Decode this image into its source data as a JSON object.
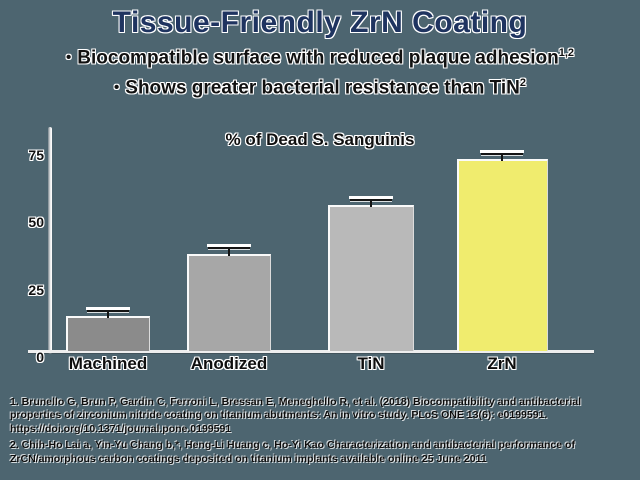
{
  "slide": {
    "title": "Tissue-Friendly ZrN Coating",
    "bullets": [
      {
        "dot": "•",
        "text": "Biocompatible surface with reduced plaque adhesion",
        "sup": "1,2"
      },
      {
        "dot": "•",
        "text": "Shows greater bacterial resistance than TiN",
        "sup": "2"
      }
    ],
    "footnotes": [
      {
        "lines": [
          "1. Brunello G, Brun P, Gardin C, Ferroni L, Bressan E, Meneghello R, et al. (2018) Biocompatibility and antibacterial",
          "properties of zirconium nitride coating on titanium abutments: An in vitro study. PLoS ONE 13(6): e0199591.",
          "https://doi.org/10.1371/journal.pone.0199591"
        ]
      },
      {
        "lines": [
          "2. Chih-Ho Lai a, Yin-Yu Chang b,*, Heng-Li Huang c, Ho-Yi Kao Characterization and antibacterial performance of",
          "ZrCN/amorphous carbon coatings deposited on titanium implants available online 25 June 2011"
        ]
      }
    ],
    "colors": {
      "background": "#4d6570",
      "title_text": "#1f3460",
      "body_text": "#111111",
      "highlight_bar": "#f0ec6e"
    }
  },
  "chart_data": {
    "type": "bar",
    "title": "% of Dead S. Sanguinis",
    "categories": [
      "Machined",
      "Anodized",
      "TiN",
      "ZrN"
    ],
    "values": [
      13,
      36,
      54,
      71
    ],
    "error_bars": [
      2,
      2,
      2,
      2
    ],
    "bar_colors": [
      "#8b8b8b",
      "#a7a7a7",
      "#b9b9b9",
      "#f0ec6e"
    ],
    "xlabel": "",
    "ylabel": "",
    "yticks": [
      0,
      25,
      50,
      75
    ],
    "ylim": [
      0,
      80
    ],
    "grid": false,
    "legend": false
  }
}
